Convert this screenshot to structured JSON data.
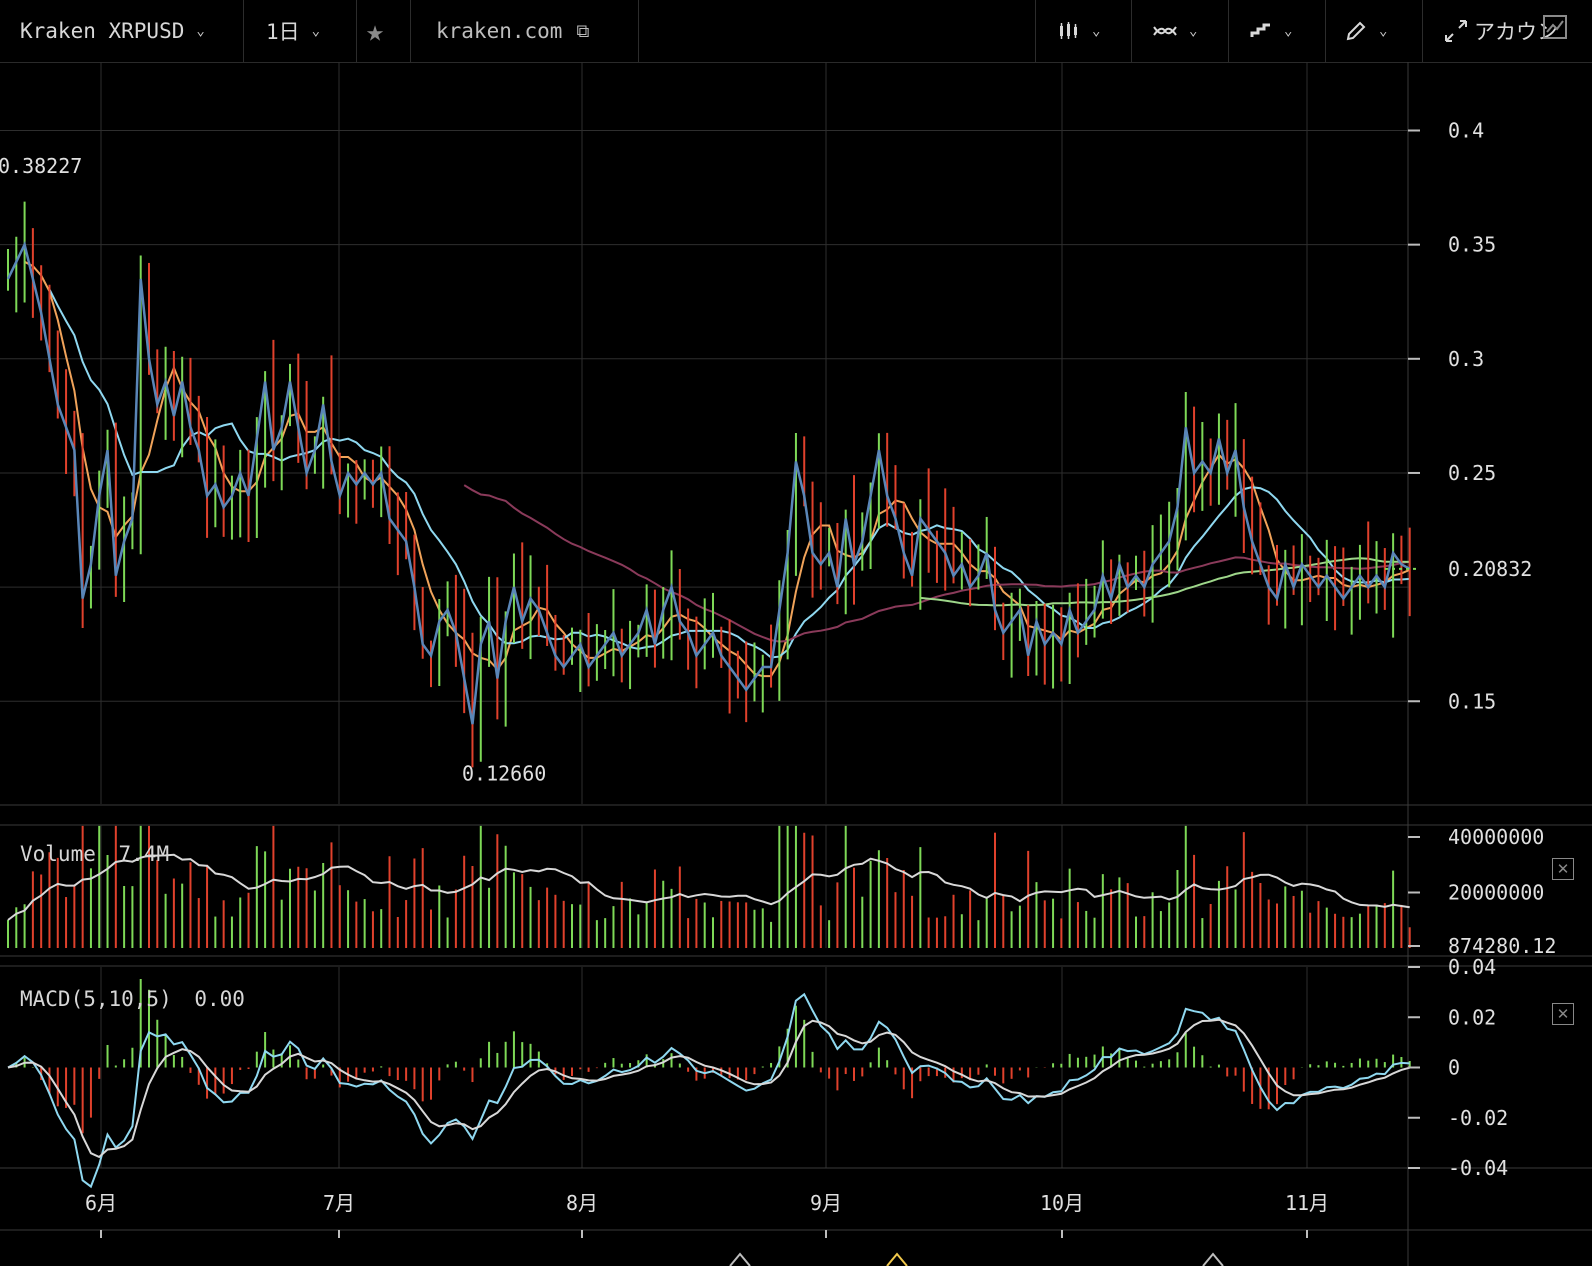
{
  "toolbar": {
    "symbol": "Kraken XRPUSD",
    "interval": "1日",
    "source": "kraken.com",
    "account_label": "アカウン",
    "icons": [
      "chevron-down-icon",
      "star-icon",
      "popout-icon",
      "candles-icon",
      "indicator-icon",
      "line-type-icon",
      "pencil-icon",
      "expand-icon",
      "chart-settings-icon"
    ]
  },
  "colors": {
    "background": "#000000",
    "up": "#7ed957",
    "down": "#e0412c",
    "close_line": "#5a86b8",
    "ma_fast": "#f0a35a",
    "ma_mid": "#8fd8f0",
    "ma_long": "#8a3a5a",
    "ma_longest": "#9ed68a",
    "volume_ma": "#d8d8d8",
    "macd_line": "#8fd8f0",
    "signal_line": "#d8d8d8",
    "grid": "#2e2e2e"
  },
  "chart_data": [
    {
      "type": "candlestick",
      "title": "",
      "xlabel": "",
      "ylabel": "",
      "x_ticks": [
        "6月",
        "7月",
        "8月",
        "9月",
        "10月",
        "11月"
      ],
      "y_ticks": [
        "0.4",
        "0.35",
        "0.3",
        "0.25",
        "0.15"
      ],
      "ylim": [
        0.105,
        0.43
      ],
      "last_price_label": "0.20832",
      "high_label": "0.38227",
      "low_label": "0.12660",
      "grid": true,
      "close_path": [
        [
          0,
          0.335
        ],
        [
          2,
          0.35
        ],
        [
          4,
          0.32
        ],
        [
          6,
          0.28
        ],
        [
          7,
          0.27
        ],
        [
          8,
          0.26
        ],
        [
          9,
          0.195
        ],
        [
          10,
          0.21
        ],
        [
          11,
          0.24
        ],
        [
          12,
          0.26
        ],
        [
          13,
          0.205
        ],
        [
          14,
          0.22
        ],
        [
          15,
          0.23
        ],
        [
          16,
          0.335
        ],
        [
          17,
          0.3
        ],
        [
          18,
          0.28
        ],
        [
          19,
          0.29
        ],
        [
          20,
          0.275
        ],
        [
          21,
          0.29
        ],
        [
          22,
          0.27
        ],
        [
          23,
          0.26
        ],
        [
          24,
          0.24
        ],
        [
          25,
          0.245
        ],
        [
          26,
          0.235
        ],
        [
          27,
          0.24
        ],
        [
          28,
          0.25
        ],
        [
          29,
          0.24
        ],
        [
          30,
          0.265
        ],
        [
          31,
          0.29
        ],
        [
          32,
          0.26
        ],
        [
          33,
          0.27
        ],
        [
          34,
          0.29
        ],
        [
          35,
          0.27
        ],
        [
          36,
          0.25
        ],
        [
          37,
          0.26
        ],
        [
          38,
          0.28
        ],
        [
          39,
          0.255
        ],
        [
          40,
          0.24
        ],
        [
          41,
          0.25
        ],
        [
          42,
          0.245
        ],
        [
          43,
          0.25
        ],
        [
          44,
          0.245
        ],
        [
          45,
          0.25
        ],
        [
          46,
          0.23
        ],
        [
          47,
          0.225
        ],
        [
          48,
          0.22
        ],
        [
          49,
          0.2
        ],
        [
          50,
          0.175
        ],
        [
          51,
          0.17
        ],
        [
          52,
          0.185
        ],
        [
          53,
          0.19
        ],
        [
          54,
          0.18
        ],
        [
          55,
          0.16
        ],
        [
          56,
          0.14
        ],
        [
          57,
          0.175
        ],
        [
          58,
          0.185
        ],
        [
          59,
          0.16
        ],
        [
          60,
          0.185
        ],
        [
          61,
          0.2
        ],
        [
          62,
          0.185
        ],
        [
          63,
          0.195
        ],
        [
          64,
          0.19
        ],
        [
          65,
          0.18
        ],
        [
          66,
          0.17
        ],
        [
          67,
          0.165
        ],
        [
          68,
          0.17
        ],
        [
          69,
          0.175
        ],
        [
          70,
          0.165
        ],
        [
          71,
          0.17
        ],
        [
          72,
          0.175
        ],
        [
          73,
          0.18
        ],
        [
          74,
          0.17
        ],
        [
          75,
          0.175
        ],
        [
          76,
          0.18
        ],
        [
          77,
          0.19
        ],
        [
          78,
          0.175
        ],
        [
          79,
          0.19
        ],
        [
          80,
          0.2
        ],
        [
          81,
          0.185
        ],
        [
          82,
          0.18
        ],
        [
          83,
          0.17
        ],
        [
          84,
          0.175
        ],
        [
          85,
          0.18
        ],
        [
          86,
          0.17
        ],
        [
          87,
          0.165
        ],
        [
          88,
          0.16
        ],
        [
          89,
          0.155
        ],
        [
          90,
          0.16
        ],
        [
          91,
          0.165
        ],
        [
          92,
          0.165
        ],
        [
          93,
          0.19
        ],
        [
          94,
          0.215
        ],
        [
          95,
          0.255
        ],
        [
          96,
          0.24
        ],
        [
          97,
          0.215
        ],
        [
          98,
          0.21
        ],
        [
          99,
          0.215
        ],
        [
          100,
          0.2
        ],
        [
          101,
          0.23
        ],
        [
          102,
          0.21
        ],
        [
          103,
          0.22
        ],
        [
          104,
          0.24
        ],
        [
          105,
          0.26
        ],
        [
          106,
          0.24
        ],
        [
          107,
          0.23
        ],
        [
          108,
          0.215
        ],
        [
          109,
          0.205
        ],
        [
          110,
          0.23
        ],
        [
          111,
          0.225
        ],
        [
          112,
          0.22
        ],
        [
          113,
          0.215
        ],
        [
          114,
          0.205
        ],
        [
          115,
          0.21
        ],
        [
          116,
          0.2
        ],
        [
          117,
          0.205
        ],
        [
          118,
          0.215
        ],
        [
          119,
          0.19
        ],
        [
          120,
          0.18
        ],
        [
          121,
          0.185
        ],
        [
          122,
          0.19
        ],
        [
          123,
          0.17
        ],
        [
          124,
          0.185
        ],
        [
          125,
          0.175
        ],
        [
          126,
          0.18
        ],
        [
          127,
          0.175
        ],
        [
          128,
          0.19
        ],
        [
          129,
          0.18
        ],
        [
          130,
          0.185
        ],
        [
          131,
          0.19
        ],
        [
          132,
          0.205
        ],
        [
          133,
          0.195
        ],
        [
          134,
          0.21
        ],
        [
          135,
          0.2
        ],
        [
          136,
          0.205
        ],
        [
          137,
          0.2
        ],
        [
          138,
          0.21
        ],
        [
          139,
          0.215
        ],
        [
          140,
          0.22
        ],
        [
          141,
          0.235
        ],
        [
          142,
          0.27
        ],
        [
          143,
          0.25
        ],
        [
          144,
          0.255
        ],
        [
          145,
          0.25
        ],
        [
          146,
          0.265
        ],
        [
          147,
          0.25
        ],
        [
          148,
          0.26
        ],
        [
          149,
          0.235
        ],
        [
          150,
          0.22
        ],
        [
          151,
          0.21
        ],
        [
          152,
          0.2
        ],
        [
          153,
          0.195
        ],
        [
          154,
          0.21
        ],
        [
          155,
          0.2
        ],
        [
          156,
          0.21
        ],
        [
          157,
          0.205
        ],
        [
          158,
          0.2
        ],
        [
          159,
          0.205
        ],
        [
          160,
          0.2
        ],
        [
          161,
          0.195
        ],
        [
          162,
          0.2
        ],
        [
          163,
          0.205
        ],
        [
          164,
          0.2
        ],
        [
          165,
          0.205
        ],
        [
          166,
          0.2
        ],
        [
          167,
          0.215
        ],
        [
          168,
          0.21
        ],
        [
          169,
          0.208
        ]
      ]
    },
    {
      "type": "bar",
      "title": "Volume",
      "value_label": "7.4M",
      "y_ticks": [
        "40000000",
        "20000000",
        "874280.12"
      ],
      "ylim": [
        0,
        40000000
      ]
    },
    {
      "type": "bar",
      "title": "MACD(5,10,5)",
      "value_label": "0.00",
      "y_ticks": [
        "0.04",
        "0.02",
        "0",
        "-0.02",
        "-0.04"
      ],
      "ylim": [
        -0.04,
        0.04
      ]
    }
  ]
}
